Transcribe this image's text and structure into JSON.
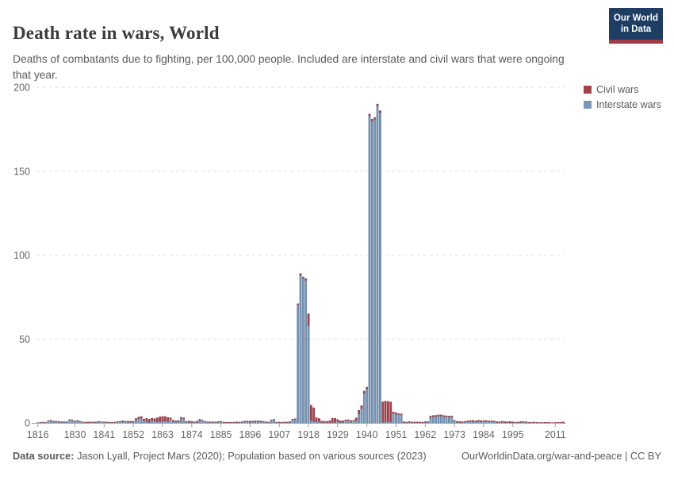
{
  "header": {
    "title": "Death rate in wars, World",
    "subtitle": "Deaths of combatants due to fighting, per 100,000 people. Included are interstate and civil wars that were ongoing that year.",
    "logo": {
      "line1": "Our World",
      "line2": "in Data",
      "bg_color": "#1d3d63",
      "stripe_color": "#a23b46"
    }
  },
  "legend": {
    "items": [
      {
        "label": "Civil wars",
        "color": "#A2434C"
      },
      {
        "label": "Interstate wars",
        "color": "#7C96B6"
      }
    ]
  },
  "footer": {
    "source_label": "Data source:",
    "source_text": " Jason Lyall, Project Mars (2020); Population based on various sources (2023)",
    "credit": "OurWorldinData.org/war-and-peace | CC BY"
  },
  "chart_data": {
    "type": "bar",
    "stacked": true,
    "title": "Death rate in wars, World",
    "xlabel": "",
    "ylabel": "",
    "x_start": 1816,
    "x_end": 2014,
    "ylim": [
      0,
      200
    ],
    "y_ticks": [
      0,
      50,
      100,
      150,
      200
    ],
    "x_tick_labels": [
      1816,
      1830,
      1841,
      1852,
      1863,
      1874,
      1885,
      1896,
      1907,
      1918,
      1929,
      1940,
      1951,
      1962,
      1973,
      1984,
      1995,
      2011
    ],
    "grid": "dashed-horizontal",
    "legend_position": "right",
    "colors": {
      "axis": "#a1a1a1",
      "grid": "#e2e2e2",
      "tick_text": "#666666"
    },
    "series": [
      {
        "name": "Interstate wars",
        "color": "#7C96B6",
        "edge": "#60809f",
        "values": [
          0.2,
          0.3,
          0.4,
          0.2,
          1.2,
          1.3,
          0.6,
          0.8,
          0.4,
          0.3,
          0.4,
          0.5,
          1.8,
          1.6,
          0.8,
          0.9,
          0.6,
          0.3,
          0.2,
          0.2,
          0.2,
          0.3,
          0.3,
          0.6,
          0.5,
          0.4,
          0.4,
          0.2,
          0.2,
          0.3,
          0.5,
          0.6,
          0.8,
          0.6,
          0.4,
          0.5,
          0.5,
          1.8,
          2.5,
          2.8,
          1.5,
          0.5,
          0.4,
          1.5,
          1.0,
          0.6,
          0.8,
          0.8,
          1.2,
          1.0,
          2.2,
          0.8,
          0.6,
          0.6,
          2.8,
          2.4,
          0.4,
          0.3,
          0.3,
          0.3,
          0.4,
          1.6,
          1.2,
          0.6,
          0.4,
          0.3,
          0.4,
          0.3,
          0.5,
          0.6,
          0.3,
          0.2,
          0.2,
          0.2,
          0.3,
          0.3,
          0.3,
          0.4,
          0.8,
          0.6,
          0.3,
          0.6,
          0.5,
          0.6,
          0.8,
          0.5,
          0.4,
          0.3,
          1.6,
          1.8,
          0.3,
          0.2,
          0.2,
          0.3,
          0.2,
          0.4,
          1.8,
          2.2,
          70.5,
          88,
          86.5,
          85,
          58,
          1.5,
          1.0,
          0.5,
          0.8,
          0.3,
          0.2,
          0.3,
          0.3,
          0.2,
          0.3,
          0.8,
          0.3,
          0.4,
          1.2,
          1.4,
          0.8,
          1.0,
          1.2,
          5.5,
          8.5,
          17.5,
          20.5,
          183,
          180,
          181,
          189,
          185,
          0.5,
          0.5,
          0.8,
          0.5,
          5.5,
          5.2,
          5.0,
          4.8,
          0.3,
          0.2,
          0.5,
          0.2,
          0.2,
          0.2,
          0.2,
          0.2,
          0.5,
          0.3,
          3.2,
          3.6,
          3.8,
          4.0,
          4.2,
          3.8,
          3.6,
          3.4,
          3.6,
          1.0,
          0.4,
          0.3,
          0.2,
          0.5,
          0.6,
          0.8,
          0.8,
          0.6,
          0.8,
          0.6,
          0.8,
          0.8,
          0.6,
          0.8,
          0.6,
          0.2,
          0.3,
          0.5,
          0.2,
          0.2,
          0.2,
          0.2,
          0.2,
          0.1,
          0.4,
          0.5,
          0.4,
          0.1,
          0.1,
          0.3,
          0.1,
          0.05,
          0.05,
          0.05,
          0.1,
          0.05,
          0.05,
          0.05,
          0.05,
          0.05,
          0.1
        ]
      },
      {
        "name": "Civil wars",
        "color": "#A2434C",
        "edge": "#8c3a42",
        "values": [
          0,
          0.1,
          0.1,
          0.1,
          0.2,
          0.3,
          0.4,
          0.3,
          0.4,
          0.4,
          0.3,
          0.2,
          0.2,
          0.2,
          0.3,
          0.6,
          0.3,
          0.2,
          0.3,
          0.4,
          0.3,
          0.3,
          0.3,
          0.3,
          0.2,
          0.2,
          0.2,
          0.2,
          0.2,
          0.2,
          0.3,
          0.3,
          0.5,
          0.4,
          0.6,
          0.5,
          0.4,
          0.8,
          1.0,
          1.0,
          0.8,
          2.2,
          1.8,
          1.2,
          1.5,
          2.4,
          2.8,
          3.0,
          2.6,
          2.2,
          0.8,
          0.8,
          0.6,
          0.8,
          0.5,
          0.6,
          0.5,
          0.8,
          0.6,
          0.4,
          0.6,
          0.6,
          0.4,
          0.3,
          0.3,
          0.3,
          0.2,
          0.3,
          0.3,
          0.3,
          0.2,
          0.2,
          0.2,
          0.2,
          0.2,
          0.3,
          0.2,
          0.3,
          0.3,
          0.5,
          0.7,
          0.5,
          0.7,
          0.6,
          0.4,
          0.4,
          0.3,
          0.2,
          0.2,
          0.3,
          0.2,
          0.3,
          0.2,
          0.3,
          0.3,
          0.4,
          0.4,
          0.3,
          0.5,
          1.0,
          0.5,
          1.0,
          7.0,
          9.0,
          8.0,
          2.6,
          1.8,
          0.8,
          0.8,
          0.6,
          1.0,
          2.6,
          2.4,
          1.2,
          1.0,
          0.8,
          0.6,
          0.5,
          0.6,
          0.5,
          1.8,
          2.0,
          1.8,
          1.5,
          0.8,
          1.0,
          1.0,
          1.0,
          1.0,
          1.0,
          12,
          12.5,
          12,
          12,
          1.0,
          0.8,
          0.5,
          0.5,
          0.4,
          0.3,
          0.3,
          0.3,
          0.4,
          0.4,
          0.3,
          0.3,
          0.3,
          0.4,
          0.8,
          0.8,
          0.7,
          0.8,
          0.6,
          0.6,
          0.6,
          0.6,
          0.5,
          0.5,
          0.5,
          0.6,
          0.5,
          0.4,
          0.6,
          0.6,
          0.7,
          0.6,
          0.8,
          0.7,
          0.6,
          0.6,
          0.5,
          0.5,
          0.5,
          0.5,
          0.4,
          0.5,
          0.5,
          0.5,
          0.6,
          0.4,
          0.3,
          0.4,
          0.4,
          0.3,
          0.3,
          0.3,
          0.2,
          0.2,
          0.2,
          0.2,
          0.2,
          0.3,
          0.2,
          0.2,
          0.1,
          0.2,
          0.3,
          0.3,
          0.5
        ]
      }
    ]
  }
}
